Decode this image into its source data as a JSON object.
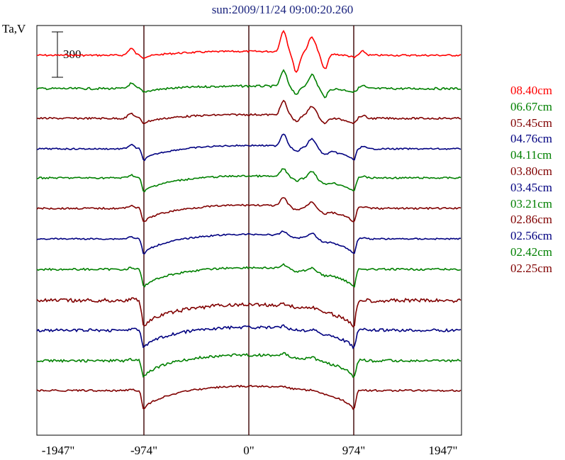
{
  "chart_data": {
    "type": "line",
    "title": "sun:2009/11/24 09:00:20.260",
    "ylabel": "Ta,V",
    "xlabel": "",
    "scale_bar": {
      "label": "300",
      "value": 300
    },
    "x_ticks": [
      {
        "value": -1947,
        "label": "-1947\""
      },
      {
        "value": -974,
        "label": "-974\""
      },
      {
        "value": 0,
        "label": "0\""
      },
      {
        "value": 974,
        "label": "974\""
      },
      {
        "value": 1947,
        "label": "1947\""
      }
    ],
    "vertical_markers": [
      -974,
      0,
      974
    ],
    "xlim": [
      -1947,
      1947
    ],
    "grid": false,
    "legend_position": "right",
    "series": [
      {
        "name": "08.40cm",
        "color": "#ff0000",
        "baseline_y": 78,
        "limb_step": 4,
        "disk_bulge": 10,
        "ar": [
          30,
          -28,
          22,
          -22
        ],
        "plage": 14,
        "noise": 1.2
      },
      {
        "name": "06.67cm",
        "color": "#008000",
        "baseline_y": 125,
        "limb_step": 6,
        "disk_bulge": 10,
        "ar": [
          22,
          -10,
          18,
          -12
        ],
        "plage": 10,
        "noise": 1.5
      },
      {
        "name": "05.45cm",
        "color": "#800000",
        "baseline_y": 167,
        "limb_step": 8,
        "disk_bulge": 14,
        "ar": [
          20,
          -8,
          15,
          -8
        ],
        "plage": 10,
        "noise": 1.3
      },
      {
        "name": "04.76cm",
        "color": "#000080",
        "baseline_y": 210,
        "limb_step": 18,
        "disk_bulge": 24,
        "ar": [
          18,
          -6,
          14,
          -6
        ],
        "plage": 8,
        "noise": 1.0
      },
      {
        "name": "04.11cm",
        "color": "#008000",
        "baseline_y": 251,
        "limb_step": 22,
        "disk_bulge": 26,
        "ar": [
          12,
          -4,
          12,
          -4
        ],
        "plage": 6,
        "noise": 1.2
      },
      {
        "name": "03.80cm",
        "color": "#800000",
        "baseline_y": 294,
        "limb_step": 22,
        "disk_bulge": 28,
        "ar": [
          12,
          -4,
          10,
          -4
        ],
        "plage": 6,
        "noise": 1.2
      },
      {
        "name": "03.45cm",
        "color": "#000080",
        "baseline_y": 337,
        "limb_step": 24,
        "disk_bulge": 32,
        "ar": [
          6,
          -2,
          8,
          -2
        ],
        "plage": 4,
        "noise": 1.0
      },
      {
        "name": "03.21cm",
        "color": "#008000",
        "baseline_y": 380,
        "limb_step": 28,
        "disk_bulge": 32,
        "ar": [
          6,
          -2,
          6,
          -2
        ],
        "plage": 3,
        "noise": 1.4
      },
      {
        "name": "02.86cm",
        "color": "#800000",
        "baseline_y": 424,
        "limb_step": 40,
        "disk_bulge": 36,
        "ar": [
          4,
          0,
          4,
          0
        ],
        "plage": 3,
        "noise": 2.6
      },
      {
        "name": "02.56cm",
        "color": "#000080",
        "baseline_y": 466,
        "limb_step": 28,
        "disk_bulge": 34,
        "ar": [
          4,
          0,
          4,
          0
        ],
        "plage": 3,
        "noise": 2.0
      },
      {
        "name": "02.42cm",
        "color": "#008000",
        "baseline_y": 509,
        "limb_step": 26,
        "disk_bulge": 36,
        "ar": [
          4,
          0,
          4,
          0
        ],
        "plage": 3,
        "noise": 1.8
      },
      {
        "name": "02.25cm",
        "color": "#800000",
        "baseline_y": 551,
        "limb_step": 30,
        "disk_bulge": 38,
        "ar": [
          2,
          0,
          2,
          0
        ],
        "plage": 2,
        "noise": 1.2
      }
    ]
  }
}
